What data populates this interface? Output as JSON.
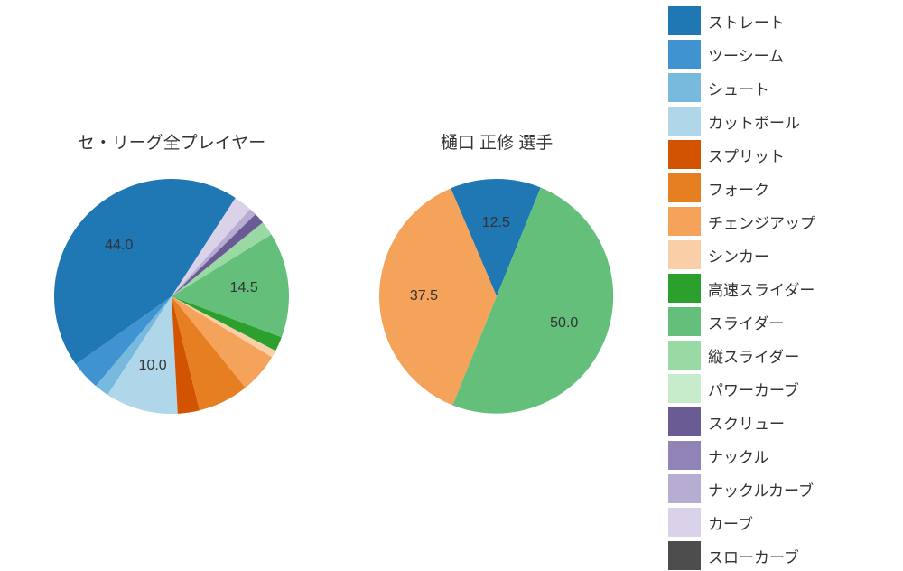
{
  "colors": {
    "background": "#ffffff",
    "text": "#333333"
  },
  "legend": [
    {
      "label": "ストレート",
      "color": "#1f77b4"
    },
    {
      "label": "ツーシーム",
      "color": "#3f93d0"
    },
    {
      "label": "シュート",
      "color": "#77bade"
    },
    {
      "label": "カットボール",
      "color": "#b0d6ea"
    },
    {
      "label": "スプリット",
      "color": "#d35400"
    },
    {
      "label": "フォーク",
      "color": "#e67e22"
    },
    {
      "label": "チェンジアップ",
      "color": "#f5a25a"
    },
    {
      "label": "シンカー",
      "color": "#f8cfa6"
    },
    {
      "label": "高速スライダー",
      "color": "#2ca02c"
    },
    {
      "label": "スライダー",
      "color": "#63bf7a"
    },
    {
      "label": "縦スライダー",
      "color": "#99d9a3"
    },
    {
      "label": "パワーカーブ",
      "color": "#c7eccb"
    },
    {
      "label": "スクリュー",
      "color": "#6b5b95"
    },
    {
      "label": "ナックル",
      "color": "#9283b6"
    },
    {
      "label": "ナックルカーブ",
      "color": "#b7acd2"
    },
    {
      "label": "カーブ",
      "color": "#d9d2e9"
    },
    {
      "label": "スローカーブ",
      "color": "#4d4d4d"
    }
  ],
  "chart_left": {
    "title": "セ・リーグ全プレイヤー",
    "type": "pie",
    "radius": 130,
    "start_angle_deg": 57,
    "slices": [
      {
        "name": "ストレート",
        "value": 44.0,
        "color": "#1f77b4",
        "label": "44.0"
      },
      {
        "name": "ツーシーム",
        "value": 4.0,
        "color": "#3f93d0"
      },
      {
        "name": "シュート",
        "value": 2.0,
        "color": "#77bade"
      },
      {
        "name": "カットボール",
        "value": 10.0,
        "color": "#b0d6ea",
        "label": "10.0"
      },
      {
        "name": "スプリット",
        "value": 3.0,
        "color": "#d35400"
      },
      {
        "name": "フォーク",
        "value": 7.0,
        "color": "#e67e22"
      },
      {
        "name": "チェンジアップ",
        "value": 5.5,
        "color": "#f5a25a"
      },
      {
        "name": "シンカー",
        "value": 1.0,
        "color": "#f8cfa6"
      },
      {
        "name": "高速スライダー",
        "value": 2.0,
        "color": "#2ca02c"
      },
      {
        "name": "スライダー",
        "value": 14.5,
        "color": "#63bf7a",
        "label": "14.5"
      },
      {
        "name": "縦スライダー",
        "value": 2.0,
        "color": "#99d9a3"
      },
      {
        "name": "スクリュー",
        "value": 1.5,
        "color": "#6b5b95"
      },
      {
        "name": "ナックルカーブ",
        "value": 1.0,
        "color": "#b7acd2"
      },
      {
        "name": "カーブ",
        "value": 2.5,
        "color": "#d9d2e9"
      }
    ]
  },
  "chart_right": {
    "title": "樋口 正修  選手",
    "type": "pie",
    "radius": 130,
    "start_angle_deg": 68,
    "slices": [
      {
        "name": "ストレート",
        "value": 12.5,
        "color": "#1f77b4",
        "label": "12.5"
      },
      {
        "name": "チェンジアップ",
        "value": 37.5,
        "color": "#f5a25a",
        "label": "37.5"
      },
      {
        "name": "スライダー",
        "value": 50.0,
        "color": "#63bf7a",
        "label": "50.0"
      }
    ]
  },
  "label_fontsize": 16,
  "title_fontsize": 19,
  "legend_fontsize": 17
}
